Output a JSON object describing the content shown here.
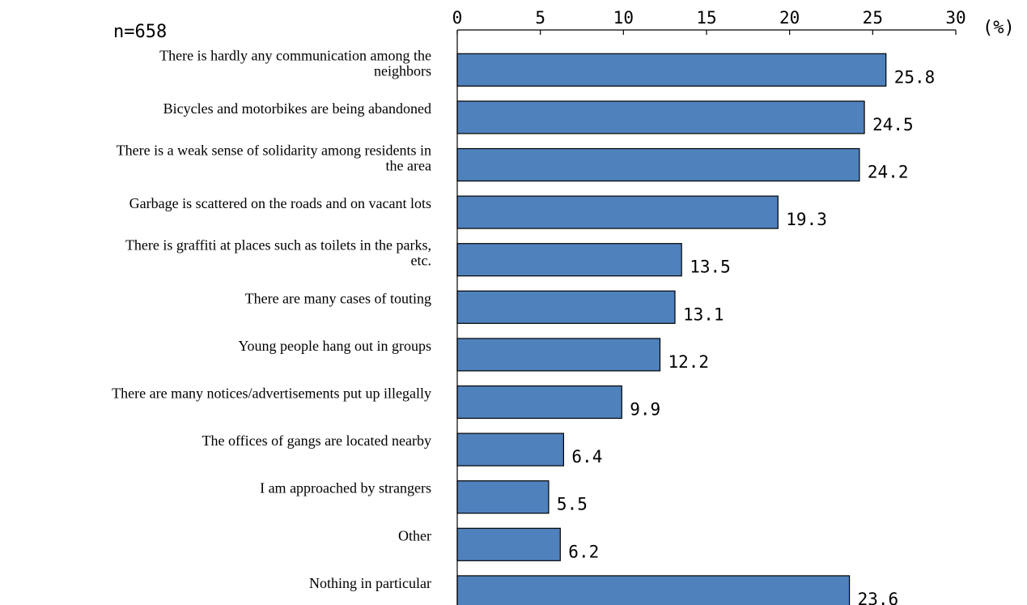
{
  "chart_data": {
    "type": "bar",
    "orientation": "horizontal",
    "sample_size_label": "n=658",
    "unit_label": "(%)",
    "xlim": [
      0,
      30
    ],
    "x_ticks": [
      0,
      5,
      10,
      15,
      20,
      25,
      30
    ],
    "x_tick_labels": [
      "0",
      "5",
      "10",
      "15",
      "20",
      "25",
      "30"
    ],
    "x_axis_position": "top",
    "grid": false,
    "bar_color": "#4f81bd",
    "categories": [
      [
        "There is hardly any communication among the",
        "neighbors"
      ],
      [
        "Bicycles and motorbikes are being abandoned"
      ],
      [
        "There is a weak sense of solidarity among residents in",
        "the area"
      ],
      [
        "Garbage is scattered on the roads and on vacant lots"
      ],
      [
        "There is graffiti at places such as toilets in the parks,",
        "etc."
      ],
      [
        "There are many cases of touting"
      ],
      [
        "Young people hang out in groups"
      ],
      [
        "There are many notices/advertisements put up illegally"
      ],
      [
        "The offices of gangs are located nearby"
      ],
      [
        "I am approached by strangers"
      ],
      [
        "Other"
      ],
      [
        "Nothing in particular"
      ]
    ],
    "values": [
      25.8,
      24.5,
      24.2,
      19.3,
      13.5,
      13.1,
      12.2,
      9.9,
      6.4,
      5.5,
      6.2,
      23.6
    ],
    "value_labels": [
      "25.8",
      "24.5",
      "24.2",
      "19.3",
      "13.5",
      "13.1",
      "12.2",
      "9.9",
      "6.4",
      "5.5",
      "6.2",
      "23.6"
    ]
  }
}
